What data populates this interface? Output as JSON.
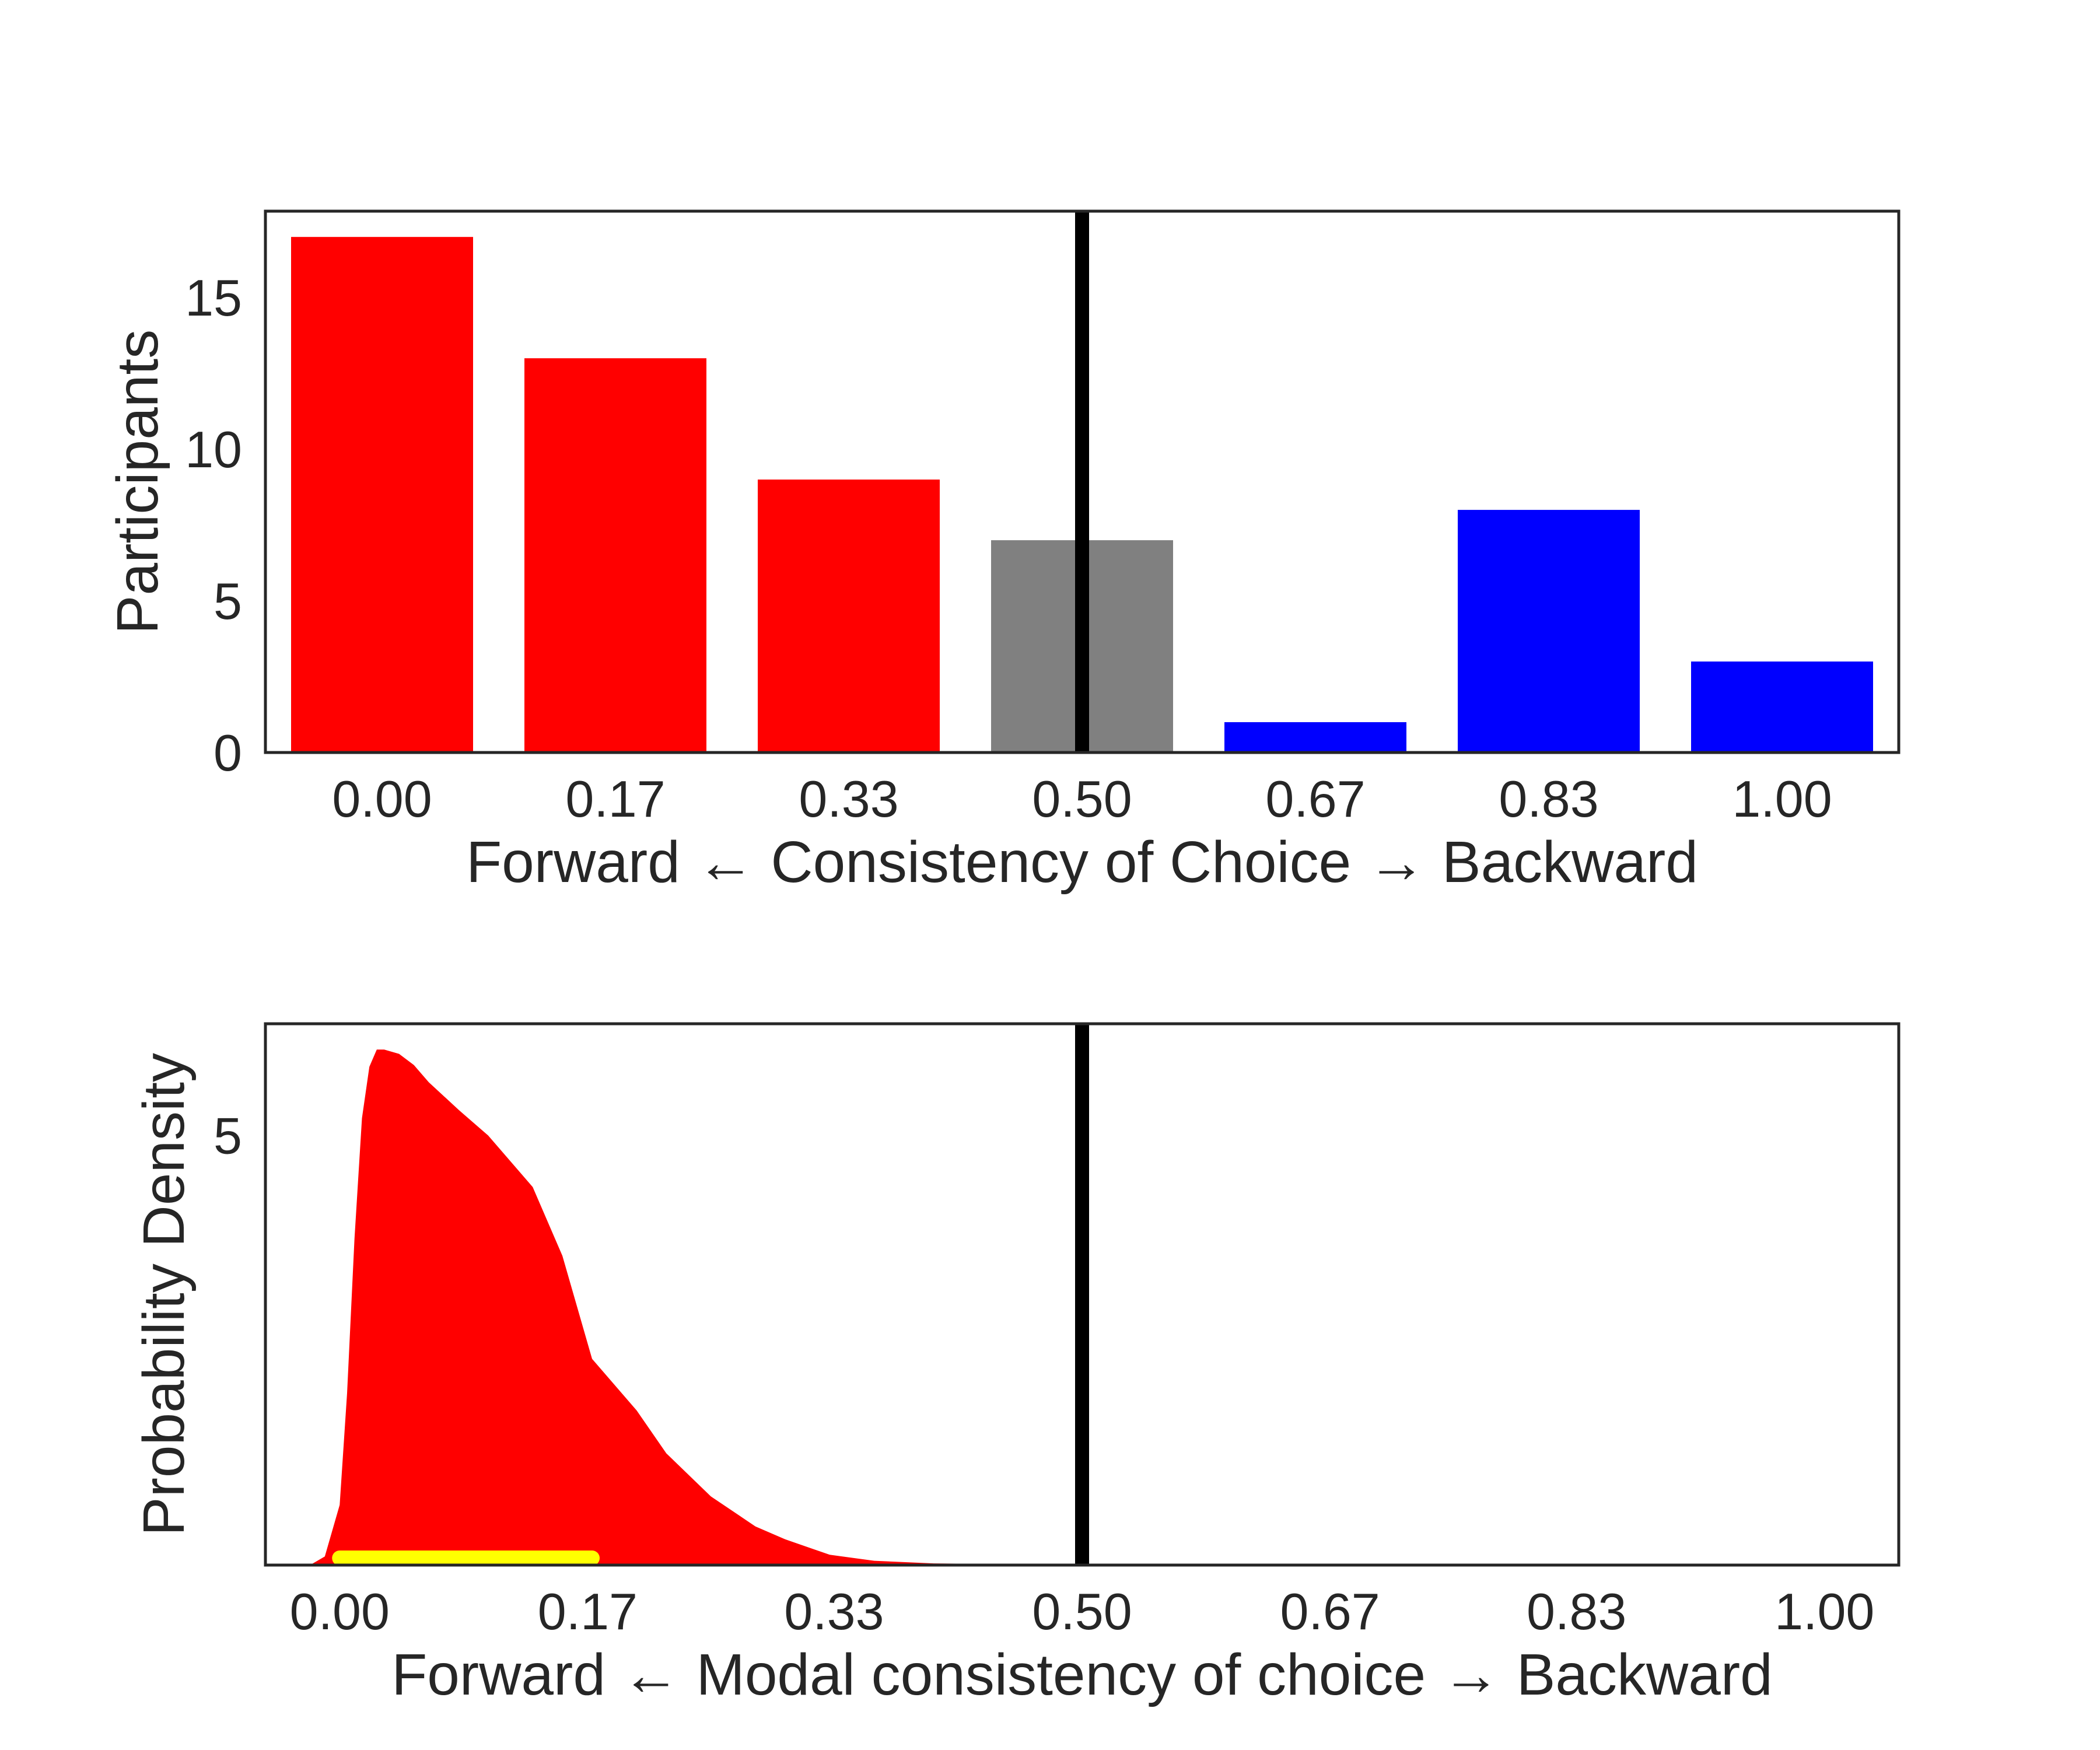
{
  "chart_data": [
    {
      "type": "bar",
      "title": "",
      "xlabel": "Forward ← Consistency of Choice → Backward",
      "ylabel": "Participants",
      "categories": [
        "0.00",
        "0.17",
        "0.33",
        "0.50",
        "0.67",
        "0.83",
        "1.00"
      ],
      "values": [
        17,
        13,
        9,
        7,
        1,
        8,
        3
      ],
      "bar_colors": [
        "#ff0000",
        "#ff0000",
        "#ff0000",
        "#808080",
        "#0000ff",
        "#0000ff",
        "#0000ff"
      ],
      "yticks": [
        "0",
        "5",
        "10",
        "15"
      ],
      "ytick_values": [
        0,
        5,
        10,
        15
      ],
      "ylim": [
        0,
        17.85
      ],
      "reference_line": {
        "x": 0.5,
        "color": "#000000"
      },
      "grid": false
    },
    {
      "type": "area",
      "title": "",
      "xlabel": "Forward ← Modal consistency of choice → Backward",
      "ylabel": "Probability Density",
      "xticks": [
        "0.00",
        "0.17",
        "0.33",
        "0.50",
        "0.67",
        "0.83",
        "1.00"
      ],
      "xtick_values": [
        0.0,
        0.167,
        0.333,
        0.5,
        0.667,
        0.833,
        1.0
      ],
      "xlim": [
        -0.05,
        1.05
      ],
      "yticks": [
        "5"
      ],
      "ytick_values": [
        5
      ],
      "ylim": [
        0,
        6.3
      ],
      "fill_color": "#ff0000",
      "density": {
        "x": [
          -0.02,
          -0.01,
          0.0,
          0.005,
          0.01,
          0.015,
          0.02,
          0.025,
          0.03,
          0.04,
          0.05,
          0.06,
          0.08,
          0.1,
          0.12,
          0.13,
          0.15,
          0.17,
          0.2,
          0.22,
          0.25,
          0.28,
          0.3,
          0.33,
          0.36,
          0.4,
          0.45,
          0.5
        ],
        "y": [
          0.0,
          0.1,
          0.7,
          2.0,
          3.8,
          5.2,
          5.8,
          6.0,
          6.0,
          5.95,
          5.82,
          5.62,
          5.3,
          5.0,
          4.6,
          4.4,
          3.6,
          2.4,
          1.8,
          1.3,
          0.8,
          0.45,
          0.3,
          0.12,
          0.05,
          0.02,
          0.01,
          0.0
        ]
      },
      "interval": {
        "x_start": 0.0,
        "x_end": 0.17,
        "color": "#ffff00"
      },
      "reference_line": {
        "x": 0.5,
        "color": "#000000"
      },
      "grid": false
    }
  ]
}
